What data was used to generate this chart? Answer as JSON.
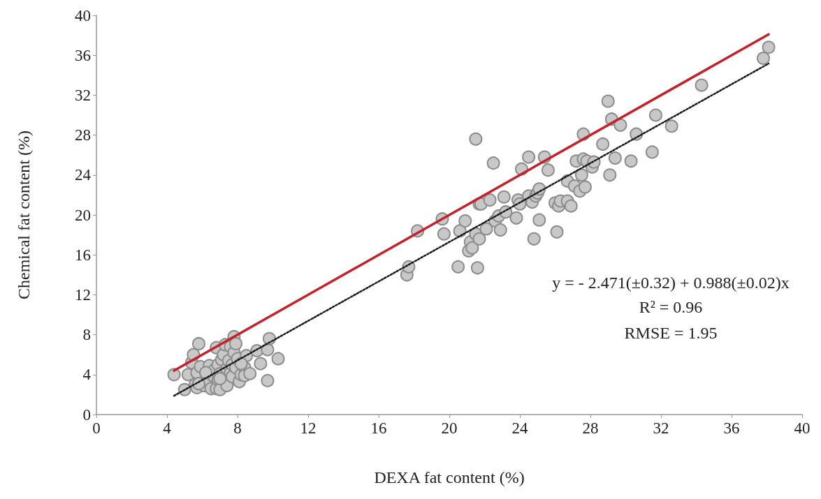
{
  "chart_data": {
    "type": "scatter",
    "xlabel": "DEXA fat content (%)",
    "ylabel": "Chemical fat content (%)",
    "xlim": [
      0,
      40
    ],
    "xticks": [
      0,
      4,
      8,
      12,
      16,
      20,
      24,
      28,
      32,
      36,
      40
    ],
    "ylim": [
      0,
      40
    ],
    "yticks": [
      0,
      4,
      8,
      12,
      16,
      20,
      24,
      28,
      32,
      36,
      40
    ],
    "grid": false,
    "marker": "circle",
    "annotations": [
      "y = - 2.471(±0.32) + 0.988(±0.02)x",
      "R² = 0.96",
      "RMSE = 1.95"
    ],
    "series": [
      {
        "color": "#c8c8c8",
        "x": [
          17.6,
          17.7,
          18.2,
          19.6,
          19.7,
          20.5,
          20.6,
          20.9,
          21.1,
          21.2,
          21.3,
          21.5,
          21.5,
          21.6,
          21.7,
          21.7,
          21.8,
          22.1,
          22.3,
          22.5,
          22.6,
          22.8,
          22.9,
          23.1,
          23.2,
          23.8,
          23.9,
          24.0,
          24.1,
          24.5,
          24.5,
          24.7,
          24.8,
          24.9,
          25.0,
          25.1,
          25.1,
          25.4,
          25.6,
          26.0,
          26.1,
          26.2,
          26.3,
          26.7,
          26.7,
          26.9,
          27.1,
          27.2,
          27.4,
          27.5,
          27.6,
          27.6,
          27.7,
          27.8,
          28.1,
          28.2,
          28.7,
          29.0,
          29.1,
          29.2,
          29.4,
          29.7,
          30.3,
          30.6,
          31.5,
          31.7,
          32.6,
          34.3,
          37.8,
          38.1,
          4.4,
          5.0,
          5.2,
          5.4,
          5.5,
          5.6,
          5.7,
          5.7,
          5.8,
          5.9,
          6.1,
          6.4,
          6.4,
          6.5,
          6.6,
          6.7,
          6.8,
          6.8,
          6.9,
          6.9,
          7.0,
          7.0,
          7.1,
          7.2,
          7.3,
          7.4,
          7.4,
          7.5,
          7.6,
          7.6,
          7.7,
          7.7,
          7.8,
          7.8,
          7.9,
          7.9,
          8.0,
          8.1,
          8.2,
          8.4,
          8.4,
          8.5,
          8.7,
          9.1,
          9.3,
          9.7,
          9.7,
          9.8,
          10.3,
          6.2,
          7.0,
          8.2,
          5.8
        ],
        "values": [
          14.0,
          14.8,
          18.4,
          19.6,
          18.1,
          14.8,
          18.4,
          19.4,
          16.4,
          17.3,
          16.7,
          27.6,
          18.1,
          14.7,
          17.6,
          21.1,
          21.1,
          18.6,
          21.5,
          25.2,
          19.4,
          19.9,
          18.5,
          21.8,
          20.3,
          19.7,
          21.5,
          21.1,
          24.6,
          25.8,
          21.9,
          21.3,
          17.6,
          21.9,
          22.2,
          19.5,
          22.6,
          25.8,
          24.5,
          21.2,
          18.3,
          20.9,
          21.4,
          23.4,
          21.4,
          20.9,
          22.9,
          25.4,
          22.4,
          24.0,
          25.6,
          28.1,
          22.8,
          25.4,
          24.8,
          25.3,
          27.1,
          31.4,
          24.0,
          29.6,
          25.7,
          29.0,
          25.4,
          28.1,
          26.3,
          30.0,
          28.9,
          33.0,
          35.7,
          36.8,
          4.0,
          2.5,
          4.0,
          5.2,
          6.0,
          3.0,
          2.7,
          4.2,
          7.1,
          4.8,
          2.9,
          3.3,
          4.9,
          2.6,
          3.9,
          4.5,
          2.6,
          6.7,
          5.0,
          3.5,
          2.5,
          4.1,
          5.5,
          6.0,
          7.0,
          4.6,
          2.9,
          5.4,
          4.2,
          6.8,
          3.8,
          5.0,
          6.2,
          7.8,
          4.7,
          7.1,
          5.6,
          3.3,
          4.0,
          4.7,
          3.9,
          5.9,
          4.1,
          6.4,
          5.1,
          6.5,
          3.4,
          7.6,
          5.6,
          4.2,
          3.6,
          5.1,
          3.1
        ]
      },
      {
        "type": "line",
        "color": "#c3222b",
        "marker": "none",
        "line_style": "solid",
        "x": [
          4.4,
          38.1
        ],
        "values": [
          4.4,
          38.1
        ]
      },
      {
        "type": "line",
        "color": "#1a1a1a",
        "marker": "none",
        "line_style": "dotted",
        "x": [
          4.4,
          38.1
        ],
        "values": [
          1.88,
          35.17
        ]
      }
    ]
  }
}
